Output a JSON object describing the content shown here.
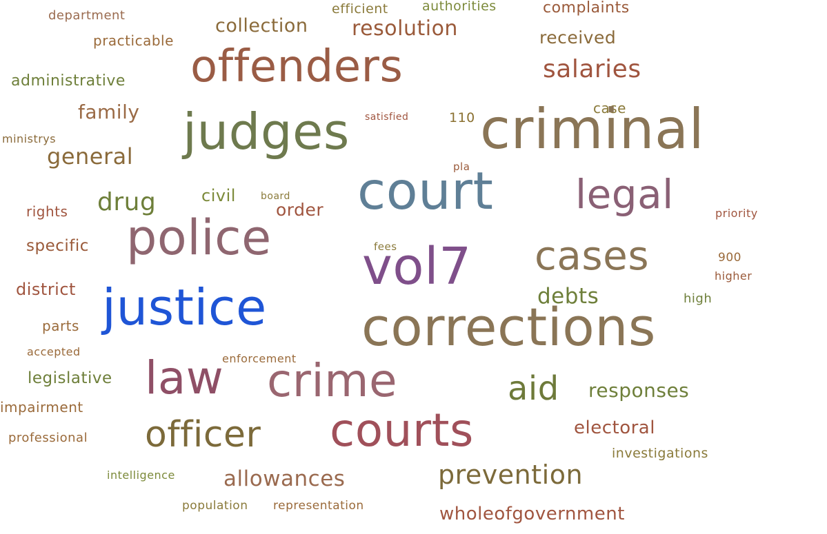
{
  "words": [
    {
      "text": "department",
      "color": "#9a6b4f"
    },
    {
      "text": "efficient",
      "color": "#8a7a3a"
    },
    {
      "text": "authorities",
      "color": "#7c8a3a"
    },
    {
      "text": "complaints",
      "color": "#9a5a3a"
    },
    {
      "text": "collection",
      "color": "#8a6a3a"
    },
    {
      "text": "resolution",
      "color": "#9a5a3a"
    },
    {
      "text": "practicable",
      "color": "#9a6a3a"
    },
    {
      "text": "received",
      "color": "#8a6a3a"
    },
    {
      "text": "offenders",
      "color": "#9a5c45"
    },
    {
      "text": "salaries",
      "color": "#a0553f"
    },
    {
      "text": "administrative",
      "color": "#6e7f3a"
    },
    {
      "text": "family",
      "color": "#9a6a45"
    },
    {
      "text": "satisfied",
      "color": "#a0553f"
    },
    {
      "text": "110",
      "color": "#8a7030"
    },
    {
      "text": "case",
      "color": "#8a7a3a"
    },
    {
      "text": "judges",
      "color": "#6e7a4e"
    },
    {
      "text": "criminal",
      "color": "#8a7556"
    },
    {
      "text": "ministrys",
      "color": "#8a6a3a"
    },
    {
      "text": "general",
      "color": "#8a6a3a"
    },
    {
      "text": "pla",
      "color": "#9a5a3a"
    },
    {
      "text": "court",
      "color": "#5f7f96"
    },
    {
      "text": "legal",
      "color": "#8a6075"
    },
    {
      "text": "drug",
      "color": "#6e7f3a"
    },
    {
      "text": "civil",
      "color": "#7c8a3a"
    },
    {
      "text": "board",
      "color": "#8a7a3a"
    },
    {
      "text": "order",
      "color": "#a0553f"
    },
    {
      "text": "rights",
      "color": "#a0553f"
    },
    {
      "text": "priority",
      "color": "#a0553f"
    },
    {
      "text": "police",
      "color": "#8f6670"
    },
    {
      "text": "specific",
      "color": "#9a5a3a"
    },
    {
      "text": "fees",
      "color": "#8a7a3a"
    },
    {
      "text": "cases",
      "color": "#8a7556"
    },
    {
      "text": "vol7",
      "color": "#7f4f8a"
    },
    {
      "text": "900",
      "color": "#9a6a3a"
    },
    {
      "text": "higher",
      "color": "#9a5a3a"
    },
    {
      "text": "district",
      "color": "#a0553f"
    },
    {
      "text": "justice",
      "color": "#1f55d6"
    },
    {
      "text": "debts",
      "color": "#6e7f3a"
    },
    {
      "text": "high",
      "color": "#6e7f3a"
    },
    {
      "text": "parts",
      "color": "#9a6a3a"
    },
    {
      "text": "corrections",
      "color": "#8a7556"
    },
    {
      "text": "accepted",
      "color": "#9a6a3a"
    },
    {
      "text": "enforcement",
      "color": "#9a6a3a"
    },
    {
      "text": "legislative",
      "color": "#6e7f3a"
    },
    {
      "text": "law",
      "color": "#8f4f66"
    },
    {
      "text": "crime",
      "color": "#9a6670"
    },
    {
      "text": "aid",
      "color": "#6e7a3a"
    },
    {
      "text": "responses",
      "color": "#6e7f3a"
    },
    {
      "text": "impairment",
      "color": "#9a6a3a"
    },
    {
      "text": "electoral",
      "color": "#a0553f"
    },
    {
      "text": "professional",
      "color": "#9a6a3a"
    },
    {
      "text": "officer",
      "color": "#7c6a3a"
    },
    {
      "text": "courts",
      "color": "#a0505a"
    },
    {
      "text": "investigations",
      "color": "#8a7a3a"
    },
    {
      "text": "intelligence",
      "color": "#7c8a3a"
    },
    {
      "text": "allowances",
      "color": "#9a6a4f"
    },
    {
      "text": "prevention",
      "color": "#7c6a3a"
    },
    {
      "text": "population",
      "color": "#8a7a3a"
    },
    {
      "text": "representation",
      "color": "#9a6a3a"
    },
    {
      "text": "wholeofgovernment",
      "color": "#a0553f"
    }
  ]
}
